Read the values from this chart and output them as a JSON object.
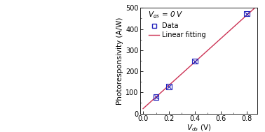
{
  "x_data": [
    0.1,
    0.2,
    0.4,
    0.8
  ],
  "y_data": [
    78,
    128,
    248,
    473
  ],
  "fit_x_start": 0.0,
  "fit_x_end": 0.88,
  "fit_slope": 553.0,
  "fit_intercept": 23.0,
  "xlim": [
    -0.02,
    0.88
  ],
  "ylim": [
    0,
    500
  ],
  "xticks": [
    0.0,
    0.2,
    0.4,
    0.6,
    0.8
  ],
  "yticks": [
    0,
    100,
    200,
    300,
    400,
    500
  ],
  "xlabel": "$V_{ds}$ (V)",
  "ylabel": "Photoresponsivity (A/W)",
  "annotation": "$V_{gs}$ = 0 V",
  "data_label": "Data",
  "fit_label": "Linear fitting",
  "data_color": "#2222bb",
  "fit_color": "#cc3355",
  "marker_size": 5.5,
  "bg_color": "#ffffff",
  "label_fontsize": 7.5,
  "tick_fontsize": 7,
  "legend_fontsize": 7,
  "annot_fontsize": 7.5
}
